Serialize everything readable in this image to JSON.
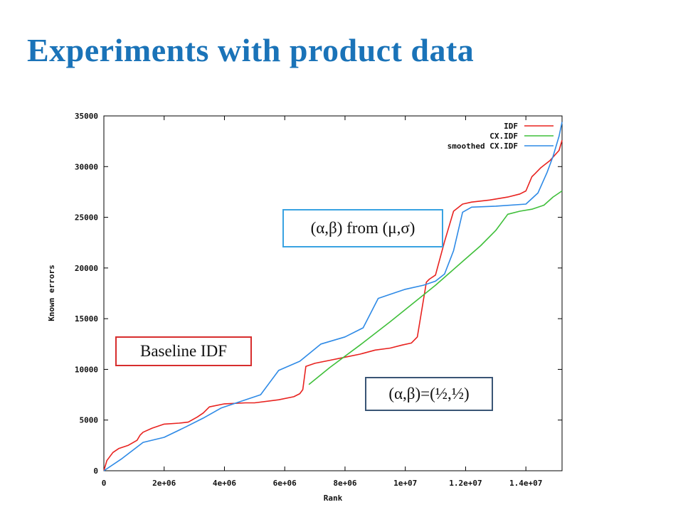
{
  "slide": {
    "title": "Experiments with product data"
  },
  "annotations": {
    "baseline": "Baseline IDF",
    "from_mu_sigma": "(α,β) from (μ,σ)",
    "half_half": "(α,β)=(½,½)"
  },
  "chart_data": {
    "type": "line",
    "xlabel": "Rank",
    "ylabel": "Known errors",
    "xlim": [
      0,
      15200000
    ],
    "ylim": [
      0,
      35000
    ],
    "xticks": [
      0,
      2000000,
      4000000,
      6000000,
      8000000,
      10000000,
      12000000,
      14000000
    ],
    "xtick_labels": [
      "0",
      "2e+06",
      "4e+06",
      "6e+06",
      "8e+06",
      "1e+07",
      "1.2e+07",
      "1.4e+07"
    ],
    "yticks": [
      0,
      5000,
      10000,
      15000,
      20000,
      25000,
      30000,
      35000
    ],
    "ytick_labels": [
      "0",
      "5000",
      "10000",
      "15000",
      "20000",
      "25000",
      "30000",
      "35000"
    ],
    "grid": false,
    "legend_position": "top-right",
    "series": [
      {
        "name": "IDF",
        "color": "#e8221f",
        "x": [
          0,
          100000,
          300000,
          500000,
          800000,
          1100000,
          1200000,
          1300000,
          1600000,
          2000000,
          2500000,
          2800000,
          3100000,
          3300000,
          3500000,
          4000000,
          4700000,
          5000000,
          5800000,
          6300000,
          6500000,
          6600000,
          6700000,
          7000000,
          7500000,
          8000000,
          8500000,
          9000000,
          9500000,
          9900000,
          10200000,
          10400000,
          10700000,
          10800000,
          11000000,
          11300000,
          11600000,
          11900000,
          12200000,
          12800000,
          13400000,
          13800000,
          14000000,
          14200000,
          14300000,
          14500000,
          14800000,
          15100000,
          15200000
        ],
        "y": [
          0,
          1000,
          1800,
          2200,
          2500,
          3000,
          3500,
          3800,
          4200,
          4600,
          4700,
          4800,
          5300,
          5700,
          6300,
          6600,
          6700,
          6700,
          7000,
          7300,
          7600,
          8000,
          10300,
          10600,
          10900,
          11200,
          11500,
          11900,
          12100,
          12400,
          12600,
          13200,
          18600,
          18900,
          19300,
          22600,
          25600,
          26300,
          26500,
          26700,
          27000,
          27300,
          27600,
          29000,
          29300,
          29900,
          30600,
          31600,
          32600
        ]
      },
      {
        "name": "CX.IDF",
        "color": "#3fbf3a",
        "x": [
          6800000,
          7500000,
          8500000,
          9500000,
          10500000,
          11000000,
          12000000,
          12500000,
          13000000,
          13400000,
          13800000,
          14200000,
          14600000,
          14900000,
          15200000
        ],
        "y": [
          8500,
          10200,
          12400,
          14700,
          17100,
          18300,
          20900,
          22200,
          23700,
          25300,
          25600,
          25800,
          26200,
          27000,
          27600
        ]
      },
      {
        "name": "smoothed CX.IDF",
        "color": "#2e8ae6",
        "x": [
          0,
          600000,
          1300000,
          2000000,
          2700000,
          3300000,
          3900000,
          4600000,
          5200000,
          5800000,
          6500000,
          7200000,
          8000000,
          8600000,
          9100000,
          9500000,
          10000000,
          10600000,
          11000000,
          11300000,
          11600000,
          11900000,
          12200000,
          13000000,
          14000000,
          14400000,
          14700000,
          14900000,
          15100000,
          15200000
        ],
        "y": [
          0,
          1200,
          2800,
          3300,
          4300,
          5200,
          6200,
          6900,
          7500,
          9900,
          10800,
          12500,
          13200,
          14100,
          17000,
          17400,
          17900,
          18300,
          18700,
          19400,
          21700,
          25500,
          26000,
          26100,
          26300,
          27400,
          29400,
          31000,
          33000,
          34400
        ]
      }
    ]
  }
}
